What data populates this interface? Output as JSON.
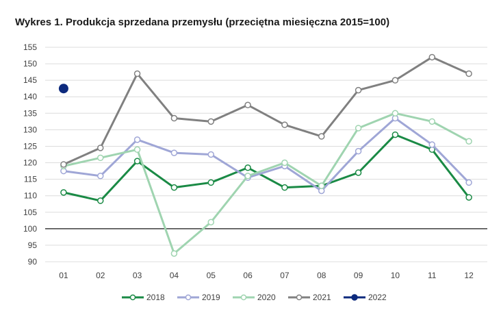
{
  "chart_data": {
    "type": "line",
    "title": "Wykres 1. Produkcja sprzedana przemysłu (przeciętna miesięczna 2015=100)",
    "xlabel": "",
    "ylabel": "",
    "categories": [
      "01",
      "02",
      "03",
      "04",
      "05",
      "06",
      "07",
      "08",
      "09",
      "10",
      "11",
      "12"
    ],
    "ylim": [
      90,
      155
    ],
    "yticks": [
      90,
      95,
      100,
      105,
      110,
      115,
      120,
      125,
      130,
      135,
      140,
      145,
      150,
      155
    ],
    "reference_line": 100,
    "grid": true,
    "legend": "bottom",
    "series": [
      {
        "name": "2018",
        "color": "#1a8a45",
        "values": [
          111,
          108.5,
          120.5,
          112.5,
          114,
          118.5,
          112.5,
          113,
          117,
          128.5,
          124,
          109.5
        ]
      },
      {
        "name": "2019",
        "color": "#9fa6d6",
        "values": [
          117.5,
          116,
          127,
          123,
          122.5,
          115.5,
          119,
          111.5,
          123.5,
          133.5,
          125.5,
          114
        ]
      },
      {
        "name": "2020",
        "color": "#9fd4b0",
        "values": [
          119,
          121.5,
          124,
          92.5,
          102,
          116,
          120,
          113,
          130.5,
          135,
          132.5,
          126.5
        ]
      },
      {
        "name": "2021",
        "color": "#808080",
        "values": [
          119.5,
          124.5,
          147,
          133.5,
          132.5,
          137.5,
          131.5,
          128,
          142,
          145,
          152,
          147
        ]
      },
      {
        "name": "2022",
        "color": "#0d2a7d",
        "values": [
          142.5,
          null,
          null,
          null,
          null,
          null,
          null,
          null,
          null,
          null,
          null,
          null
        ]
      }
    ]
  }
}
